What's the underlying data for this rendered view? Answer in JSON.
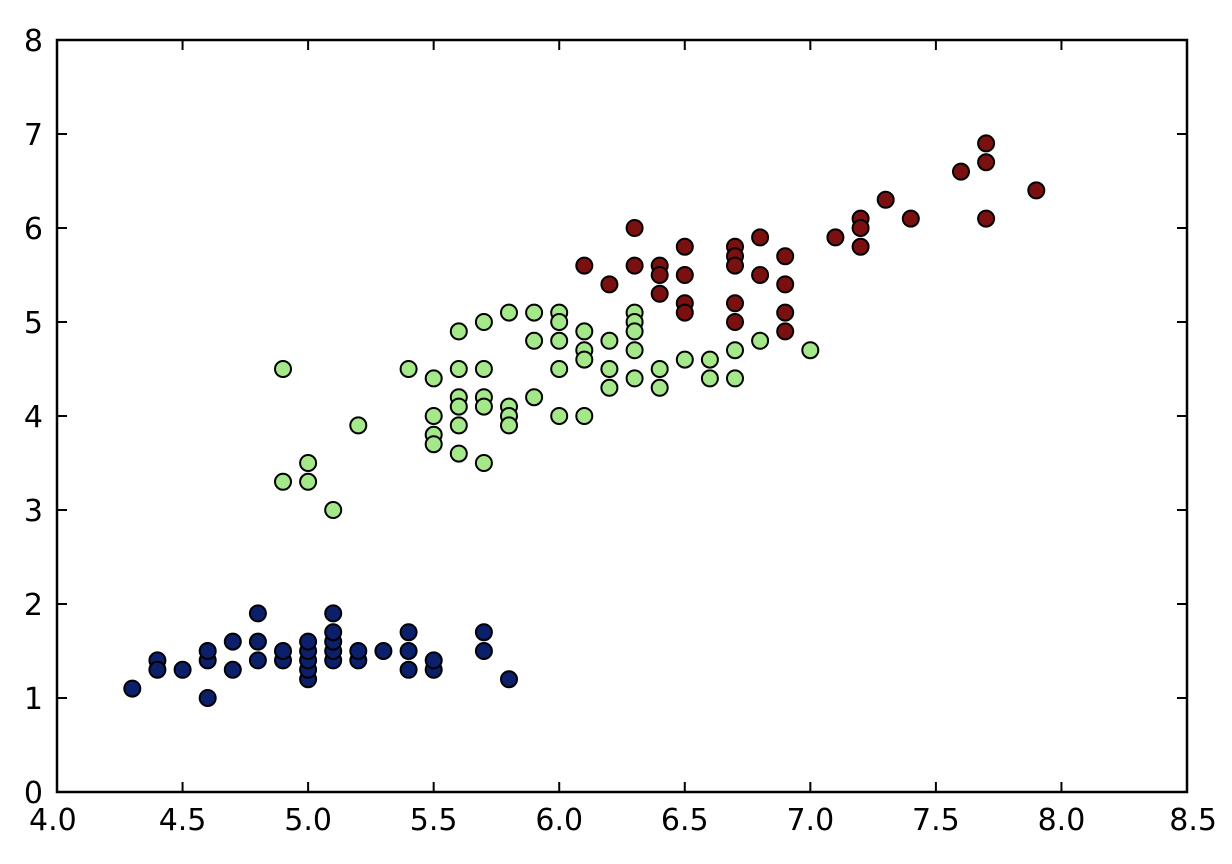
{
  "chart_data": {
    "type": "scatter",
    "title": "",
    "xlabel": "",
    "ylabel": "",
    "xlim": [
      4.0,
      8.5
    ],
    "ylim": [
      0,
      8
    ],
    "x_ticks": [
      4.0,
      4.5,
      5.0,
      5.5,
      6.0,
      6.5,
      7.0,
      7.5,
      8.0,
      8.5
    ],
    "x_tick_labels": [
      "4.0",
      "4.5",
      "5.0",
      "5.5",
      "6.0",
      "6.5",
      "7.0",
      "7.5",
      "8.0",
      "8.5"
    ],
    "y_ticks": [
      0,
      1,
      2,
      3,
      4,
      5,
      6,
      7,
      8
    ],
    "y_tick_labels": [
      "0",
      "1",
      "2",
      "3",
      "4",
      "5",
      "6",
      "7",
      "8"
    ],
    "grid": false,
    "legend": "none",
    "series": [
      {
        "color": "#0b1f6b",
        "points": [
          [
            4.3,
            1.1
          ],
          [
            4.4,
            1.4
          ],
          [
            4.4,
            1.3
          ],
          [
            4.5,
            1.3
          ],
          [
            4.6,
            1.0
          ],
          [
            4.6,
            1.4
          ],
          [
            4.6,
            1.5
          ],
          [
            4.7,
            1.3
          ],
          [
            4.7,
            1.6
          ],
          [
            4.8,
            1.4
          ],
          [
            4.8,
            1.6
          ],
          [
            4.8,
            1.9
          ],
          [
            4.9,
            1.4
          ],
          [
            4.9,
            1.5
          ],
          [
            5.0,
            1.2
          ],
          [
            5.0,
            1.3
          ],
          [
            5.0,
            1.4
          ],
          [
            5.0,
            1.5
          ],
          [
            5.0,
            1.6
          ],
          [
            5.1,
            1.4
          ],
          [
            5.1,
            1.5
          ],
          [
            5.1,
            1.6
          ],
          [
            5.1,
            1.7
          ],
          [
            5.1,
            1.9
          ],
          [
            5.2,
            1.4
          ],
          [
            5.2,
            1.5
          ],
          [
            5.3,
            1.5
          ],
          [
            5.4,
            1.3
          ],
          [
            5.4,
            1.5
          ],
          [
            5.4,
            1.7
          ],
          [
            5.5,
            1.3
          ],
          [
            5.5,
            1.4
          ],
          [
            5.7,
            1.5
          ],
          [
            5.7,
            1.7
          ],
          [
            5.8,
            1.2
          ]
        ]
      },
      {
        "color": "#a4e88a",
        "points": [
          [
            4.9,
            4.5
          ],
          [
            4.9,
            3.3
          ],
          [
            5.0,
            3.3
          ],
          [
            5.0,
            3.5
          ],
          [
            5.1,
            3.0
          ],
          [
            5.2,
            3.9
          ],
          [
            5.4,
            4.5
          ],
          [
            5.5,
            4.4
          ],
          [
            5.5,
            4.0
          ],
          [
            5.5,
            3.8
          ],
          [
            5.5,
            3.7
          ],
          [
            5.6,
            4.9
          ],
          [
            5.6,
            4.5
          ],
          [
            5.6,
            4.2
          ],
          [
            5.6,
            4.1
          ],
          [
            5.6,
            3.9
          ],
          [
            5.6,
            3.6
          ],
          [
            5.7,
            5.0
          ],
          [
            5.7,
            4.5
          ],
          [
            5.7,
            4.2
          ],
          [
            5.7,
            4.1
          ],
          [
            5.7,
            3.5
          ],
          [
            5.8,
            5.1
          ],
          [
            5.8,
            4.1
          ],
          [
            5.8,
            4.0
          ],
          [
            5.8,
            3.9
          ],
          [
            5.9,
            5.1
          ],
          [
            5.9,
            4.8
          ],
          [
            5.9,
            4.2
          ],
          [
            6.0,
            5.1
          ],
          [
            6.0,
            5.0
          ],
          [
            6.0,
            4.8
          ],
          [
            6.0,
            4.5
          ],
          [
            6.0,
            4.0
          ],
          [
            6.1,
            4.9
          ],
          [
            6.1,
            4.7
          ],
          [
            6.1,
            4.6
          ],
          [
            6.1,
            4.0
          ],
          [
            6.2,
            4.8
          ],
          [
            6.2,
            4.5
          ],
          [
            6.2,
            4.3
          ],
          [
            6.3,
            5.1
          ],
          [
            6.3,
            5.0
          ],
          [
            6.3,
            4.9
          ],
          [
            6.3,
            4.7
          ],
          [
            6.3,
            4.4
          ],
          [
            6.4,
            4.5
          ],
          [
            6.4,
            4.3
          ],
          [
            6.5,
            4.6
          ],
          [
            6.6,
            4.6
          ],
          [
            6.6,
            4.4
          ],
          [
            6.7,
            4.7
          ],
          [
            6.7,
            4.4
          ],
          [
            6.8,
            4.8
          ],
          [
            7.0,
            4.7
          ]
        ]
      },
      {
        "color": "#7a1010",
        "points": [
          [
            6.1,
            5.6
          ],
          [
            6.2,
            5.4
          ],
          [
            6.3,
            6.0
          ],
          [
            6.3,
            5.6
          ],
          [
            6.4,
            5.6
          ],
          [
            6.4,
            5.5
          ],
          [
            6.4,
            5.3
          ],
          [
            6.5,
            5.8
          ],
          [
            6.5,
            5.5
          ],
          [
            6.5,
            5.2
          ],
          [
            6.5,
            5.1
          ],
          [
            6.7,
            5.8
          ],
          [
            6.7,
            5.7
          ],
          [
            6.7,
            5.6
          ],
          [
            6.7,
            5.2
          ],
          [
            6.7,
            5.0
          ],
          [
            6.8,
            5.9
          ],
          [
            6.8,
            5.5
          ],
          [
            6.9,
            5.7
          ],
          [
            6.9,
            5.4
          ],
          [
            6.9,
            5.1
          ],
          [
            6.9,
            4.9
          ],
          [
            7.1,
            5.9
          ],
          [
            7.2,
            6.1
          ],
          [
            7.2,
            6.0
          ],
          [
            7.2,
            5.8
          ],
          [
            7.3,
            6.3
          ],
          [
            7.4,
            6.1
          ],
          [
            7.6,
            6.6
          ],
          [
            7.7,
            6.9
          ],
          [
            7.7,
            6.7
          ],
          [
            7.7,
            6.1
          ],
          [
            7.9,
            6.4
          ]
        ]
      }
    ]
  }
}
